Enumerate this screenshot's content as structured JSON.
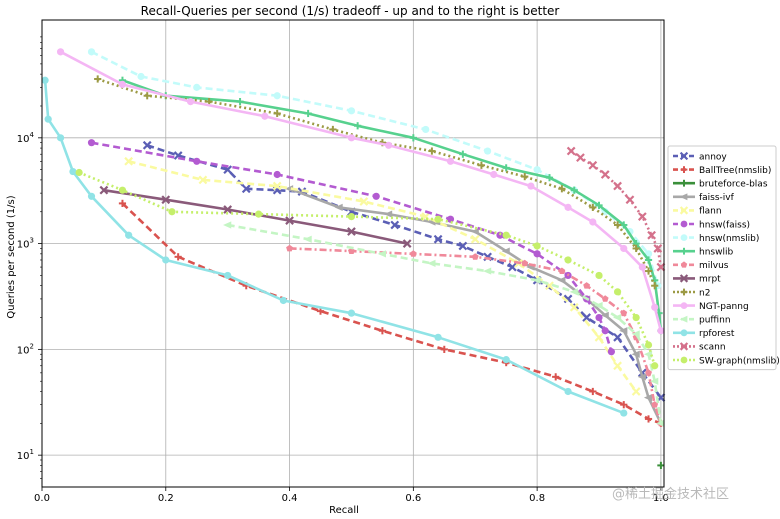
{
  "watermark": "@稀土掘金技术社区",
  "chart_data": {
    "type": "line",
    "title": "Recall-Queries per second (1/s) tradeoff - up and to the right is better",
    "xlabel": "Recall",
    "ylabel": "Queries per second (1/s)",
    "xlim": [
      0.0,
      1.005
    ],
    "ylim": [
      5,
      130000
    ],
    "yscale": "log",
    "grid": true,
    "legend_position": "right",
    "xticks": [
      {
        "v": 0.0,
        "label": "0.0"
      },
      {
        "v": 0.2,
        "label": "0.2"
      },
      {
        "v": 0.4,
        "label": "0.4"
      },
      {
        "v": 0.6,
        "label": "0.6"
      },
      {
        "v": 0.8,
        "label": "0.8"
      },
      {
        "v": 1.0,
        "label": "1.0"
      }
    ],
    "yticks": [
      {
        "v": 10,
        "base": "10",
        "exp": "1"
      },
      {
        "v": 100,
        "base": "10",
        "exp": "2"
      },
      {
        "v": 1000,
        "base": "10",
        "exp": "3"
      },
      {
        "v": 10000,
        "base": "10",
        "exp": "4"
      }
    ],
    "series": [
      {
        "name": "annoy",
        "color": "#5b5fb5",
        "dash": "dash",
        "marker": "x",
        "points": [
          [
            0.17,
            8500
          ],
          [
            0.22,
            6800
          ],
          [
            0.3,
            5000
          ],
          [
            0.33,
            3300
          ],
          [
            0.38,
            3200
          ],
          [
            0.42,
            3100
          ],
          [
            0.5,
            2000
          ],
          [
            0.57,
            1500
          ],
          [
            0.64,
            1100
          ],
          [
            0.68,
            950
          ],
          [
            0.72,
            750
          ],
          [
            0.76,
            600
          ],
          [
            0.8,
            450
          ],
          [
            0.85,
            300
          ],
          [
            0.88,
            200
          ],
          [
            0.93,
            130
          ],
          [
            0.97,
            60
          ],
          [
            1.0,
            35
          ]
        ]
      },
      {
        "name": "BallTree(nmslib)",
        "color": "#d9534f",
        "dash": "dash",
        "marker": "plus",
        "points": [
          [
            0.13,
            2400
          ],
          [
            0.22,
            750
          ],
          [
            0.33,
            400
          ],
          [
            0.45,
            230
          ],
          [
            0.55,
            150
          ],
          [
            0.65,
            100
          ],
          [
            0.75,
            75
          ],
          [
            0.83,
            55
          ],
          [
            0.89,
            40
          ],
          [
            0.94,
            30
          ],
          [
            0.98,
            22
          ],
          [
            1.0,
            20
          ]
        ]
      },
      {
        "name": "bruteforce-blas",
        "color": "#3a8f3a",
        "dash": "solid",
        "marker": "plus",
        "points": [
          [
            1.0,
            8
          ]
        ]
      },
      {
        "name": "faiss-ivf",
        "color": "#a8a8a8",
        "dash": "solid",
        "marker": "triangle",
        "points": [
          [
            0.4,
            3300
          ],
          [
            0.48,
            2200
          ],
          [
            0.56,
            1900
          ],
          [
            0.63,
            1600
          ],
          [
            0.7,
            1300
          ],
          [
            0.75,
            850
          ],
          [
            0.79,
            600
          ],
          [
            0.84,
            450
          ],
          [
            0.88,
            300
          ],
          [
            0.91,
            210
          ],
          [
            0.94,
            150
          ],
          [
            0.96,
            90
          ],
          [
            0.97,
            55
          ],
          [
            0.98,
            35
          ],
          [
            1.0,
            20
          ]
        ]
      },
      {
        "name": "flann",
        "color": "#fafaa0",
        "dash": "dash",
        "marker": "x",
        "points": [
          [
            0.14,
            6000
          ],
          [
            0.26,
            4000
          ],
          [
            0.38,
            3500
          ],
          [
            0.52,
            2500
          ],
          [
            0.62,
            1800
          ],
          [
            0.7,
            1100
          ],
          [
            0.77,
            650
          ],
          [
            0.82,
            400
          ],
          [
            0.86,
            250
          ],
          [
            0.9,
            130
          ],
          [
            0.93,
            70
          ],
          [
            0.96,
            40
          ]
        ]
      },
      {
        "name": "hnsw(faiss)",
        "color": "#b35bd1",
        "dash": "dash",
        "marker": "circle",
        "points": [
          [
            0.08,
            9000
          ],
          [
            0.25,
            6000
          ],
          [
            0.38,
            4500
          ],
          [
            0.54,
            2800
          ],
          [
            0.66,
            1700
          ],
          [
            0.74,
            1200
          ],
          [
            0.8,
            800
          ],
          [
            0.85,
            500
          ],
          [
            0.88,
            300
          ],
          [
            0.9,
            200
          ],
          [
            0.91,
            150
          ],
          [
            0.92,
            95
          ]
        ]
      },
      {
        "name": "hnsw(nmslib)",
        "color": "#c2fbfa",
        "dash": "dash",
        "marker": "circle",
        "points": [
          [
            0.08,
            65000
          ],
          [
            0.16,
            38000
          ],
          [
            0.25,
            30000
          ],
          [
            0.38,
            25000
          ],
          [
            0.5,
            18000
          ],
          [
            0.62,
            12000
          ],
          [
            0.72,
            7500
          ],
          [
            0.8,
            5000
          ],
          [
            0.86,
            3200
          ],
          [
            0.91,
            2000
          ],
          [
            0.95,
            1300
          ],
          [
            0.98,
            800
          ],
          [
            0.995,
            400
          ]
        ]
      },
      {
        "name": "hnswlib",
        "color": "#57d18e",
        "dash": "solid",
        "marker": "plus",
        "points": [
          [
            0.13,
            35000
          ],
          [
            0.2,
            25000
          ],
          [
            0.32,
            22000
          ],
          [
            0.43,
            17000
          ],
          [
            0.51,
            13000
          ],
          [
            0.6,
            10000
          ],
          [
            0.68,
            7000
          ],
          [
            0.75,
            5200
          ],
          [
            0.82,
            4200
          ],
          [
            0.86,
            3200
          ],
          [
            0.9,
            2300
          ],
          [
            0.94,
            1500
          ],
          [
            0.96,
            1000
          ],
          [
            0.98,
            700
          ],
          [
            0.99,
            450
          ],
          [
            0.997,
            220
          ],
          [
            1.0,
            150
          ]
        ]
      },
      {
        "name": "milvus",
        "color": "#f0899a",
        "dash": "dashdot",
        "marker": "pentagon",
        "points": [
          [
            0.4,
            900
          ],
          [
            0.5,
            850
          ],
          [
            0.6,
            800
          ],
          [
            0.7,
            750
          ],
          [
            0.78,
            650
          ],
          [
            0.84,
            550
          ],
          [
            0.88,
            400
          ],
          [
            0.91,
            300
          ],
          [
            0.94,
            220
          ],
          [
            0.96,
            130
          ],
          [
            0.98,
            60
          ],
          [
            0.99,
            30
          ],
          [
            1.0,
            20
          ]
        ]
      },
      {
        "name": "mrpt",
        "color": "#8a5a7a",
        "dash": "solid",
        "marker": "x",
        "points": [
          [
            0.1,
            3200
          ],
          [
            0.2,
            2600
          ],
          [
            0.3,
            2100
          ],
          [
            0.4,
            1650
          ],
          [
            0.5,
            1300
          ],
          [
            0.59,
            1000
          ]
        ]
      },
      {
        "name": "n2",
        "color": "#9c9a44",
        "dash": "dot",
        "marker": "plus",
        "points": [
          [
            0.09,
            36000
          ],
          [
            0.17,
            25000
          ],
          [
            0.27,
            22000
          ],
          [
            0.38,
            17000
          ],
          [
            0.47,
            12000
          ],
          [
            0.55,
            9000
          ],
          [
            0.63,
            7500
          ],
          [
            0.71,
            5500
          ],
          [
            0.78,
            4300
          ],
          [
            0.84,
            3300
          ],
          [
            0.89,
            2200
          ],
          [
            0.93,
            1500
          ],
          [
            0.96,
            900
          ],
          [
            0.98,
            550
          ],
          [
            0.99,
            400
          ]
        ]
      },
      {
        "name": "NGT-panng",
        "color": "#f4b6f4",
        "dash": "solid",
        "marker": "circle",
        "points": [
          [
            0.03,
            65000
          ],
          [
            0.13,
            32000
          ],
          [
            0.24,
            22000
          ],
          [
            0.36,
            16000
          ],
          [
            0.5,
            10000
          ],
          [
            0.56,
            8500
          ],
          [
            0.66,
            6000
          ],
          [
            0.73,
            4500
          ],
          [
            0.79,
            3500
          ],
          [
            0.85,
            2200
          ],
          [
            0.89,
            1600
          ],
          [
            0.94,
            900
          ],
          [
            0.97,
            600
          ],
          [
            0.99,
            250
          ],
          [
            1.0,
            150
          ]
        ]
      },
      {
        "name": "puffinn",
        "color": "#c4f5c4",
        "dash": "dash",
        "marker": "triangle",
        "points": [
          [
            0.3,
            1500
          ],
          [
            0.43,
            1100
          ],
          [
            0.55,
            800
          ],
          [
            0.63,
            650
          ],
          [
            0.72,
            550
          ],
          [
            0.8,
            450
          ],
          [
            0.86,
            350
          ],
          [
            0.9,
            260
          ],
          [
            0.93,
            200
          ],
          [
            0.96,
            140
          ],
          [
            0.98,
            90
          ],
          [
            0.99,
            50
          ],
          [
            1.0,
            20
          ]
        ]
      },
      {
        "name": "rpforest",
        "color": "#90e3e6",
        "dash": "solid",
        "marker": "circle",
        "points": [
          [
            0.005,
            35000
          ],
          [
            0.01,
            15000
          ],
          [
            0.03,
            10000
          ],
          [
            0.05,
            4800
          ],
          [
            0.08,
            2800
          ],
          [
            0.14,
            1200
          ],
          [
            0.2,
            700
          ],
          [
            0.3,
            500
          ],
          [
            0.39,
            290
          ],
          [
            0.5,
            220
          ],
          [
            0.64,
            130
          ],
          [
            0.75,
            80
          ],
          [
            0.85,
            40
          ],
          [
            0.94,
            25
          ]
        ]
      },
      {
        "name": "scann",
        "color": "#d4718b",
        "dash": "dot",
        "marker": "x",
        "points": [
          [
            0.855,
            7500
          ],
          [
            0.87,
            6500
          ],
          [
            0.89,
            5500
          ],
          [
            0.91,
            4500
          ],
          [
            0.93,
            3500
          ],
          [
            0.95,
            2600
          ],
          [
            0.97,
            1800
          ],
          [
            0.985,
            1200
          ],
          [
            0.995,
            900
          ],
          [
            1.0,
            600
          ]
        ]
      },
      {
        "name": "SW-graph(nmslib)",
        "color": "#c5ef6b",
        "dash": "dot",
        "marker": "circle",
        "points": [
          [
            0.06,
            4700
          ],
          [
            0.13,
            3200
          ],
          [
            0.21,
            2000
          ],
          [
            0.35,
            1900
          ],
          [
            0.5,
            1800
          ],
          [
            0.64,
            1700
          ],
          [
            0.75,
            1200
          ],
          [
            0.8,
            950
          ],
          [
            0.85,
            700
          ],
          [
            0.9,
            500
          ],
          [
            0.93,
            350
          ],
          [
            0.96,
            200
          ],
          [
            0.98,
            110
          ],
          [
            0.99,
            70
          ]
        ]
      }
    ]
  }
}
